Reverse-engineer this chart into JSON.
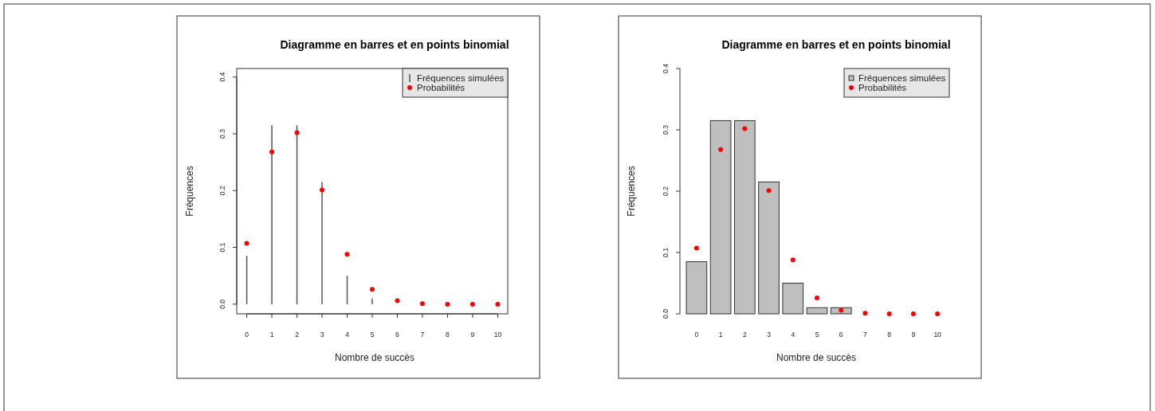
{
  "chart_data": [
    {
      "type": "lollipop",
      "title": "Diagramme en barres et en points binomial",
      "xlabel": "Nombre de succès",
      "ylabel": "Fréquences",
      "categories": [
        "0",
        "1",
        "2",
        "3",
        "4",
        "5",
        "6",
        "7",
        "8",
        "9",
        "10"
      ],
      "ylim": [
        -0.017,
        0.415
      ],
      "yticks": [
        {
          "value": 0,
          "label": "0.0"
        },
        0.1,
        0.2,
        0.3,
        0.4
      ],
      "legend": "top right",
      "series": [
        {
          "name": "Fréquences simulées",
          "type": "bar",
          "color": "#555555",
          "values": [
            0.085,
            0.315,
            0.315,
            0.215,
            0.05,
            0.01,
            null,
            0,
            0,
            0,
            0
          ]
        },
        {
          "name": "Probabilités",
          "type": "scatter",
          "marker": "circle",
          "color": "#ff0000",
          "values": [
            0.107,
            0.268,
            0.302,
            0.201,
            0.088,
            0.026,
            0.006,
            0.001,
            0,
            0,
            0
          ]
        }
      ]
    },
    {
      "type": "bar",
      "title": "Diagramme en barres et en points binomial",
      "xlabel": "Nombre de succès",
      "ylabel": "Fréquences",
      "categories": [
        "0",
        "1",
        "2",
        "3",
        "4",
        "5",
        "6",
        "7",
        "8",
        "9",
        "10"
      ],
      "ylim": [
        0,
        0.4
      ],
      "yticks": [
        {
          "value": 0,
          "label": "0.0"
        },
        0.1,
        0.2,
        0.3,
        0.4
      ],
      "legend": "top right",
      "series": [
        {
          "name": "Fréquences simulées",
          "type": "bar",
          "color": "#bebebe",
          "values": [
            0.085,
            0.315,
            0.315,
            0.215,
            0.05,
            0.01,
            0.01,
            0,
            0,
            0,
            0
          ]
        },
        {
          "name": "Probabilités",
          "type": "scatter",
          "marker": "circle",
          "color": "#ff0000",
          "values": [
            0.107,
            0.268,
            0.302,
            0.201,
            0.088,
            0.026,
            0.006,
            0.001,
            0,
            0,
            0
          ]
        }
      ]
    }
  ]
}
